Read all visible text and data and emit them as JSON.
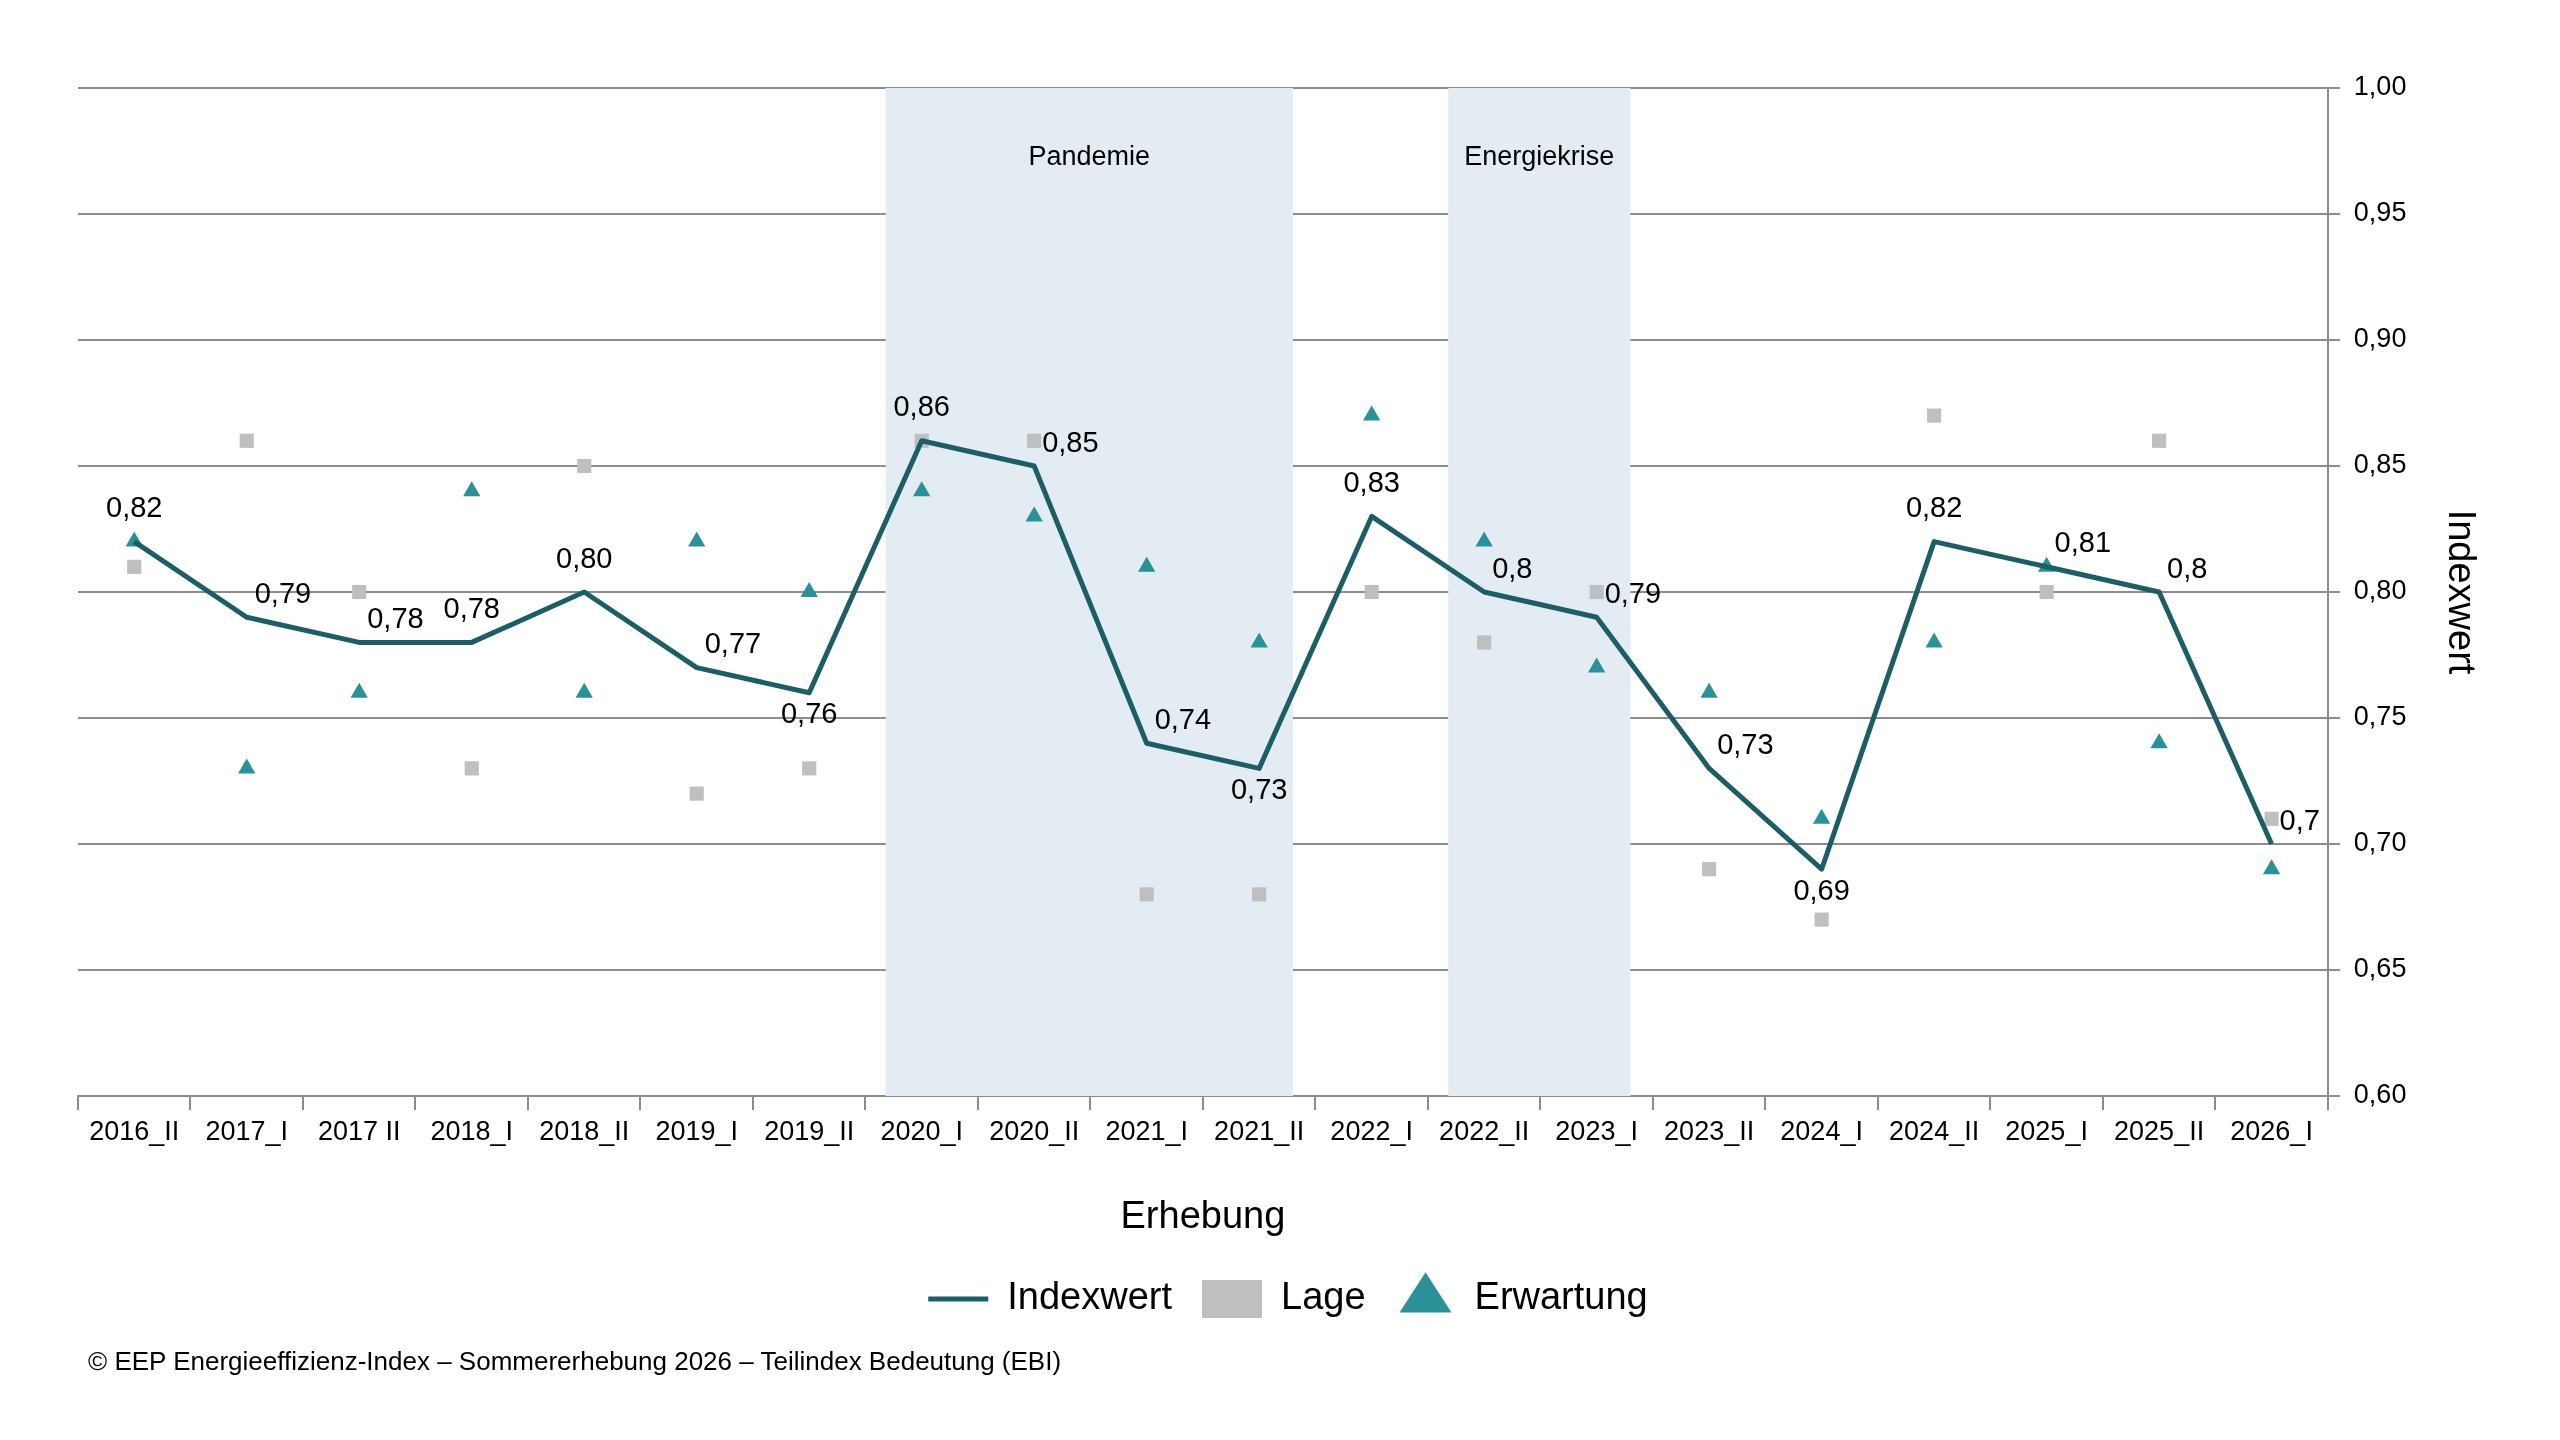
{
  "chart_data": {
    "type": "line",
    "xlabel": "Erhebung",
    "y2label": "Indexwert",
    "categories": [
      "2016_II",
      "2017_I",
      "2017 II",
      "2018_I",
      "2018_II",
      "2019_I",
      "2019_II",
      "2020_I",
      "2020_II",
      "2021_I",
      "2021_II",
      "2022_I",
      "2022_II",
      "2023_I",
      "2023_II",
      "2024_I",
      "2024_II",
      "2025_I",
      "2025_II",
      "2026_I"
    ],
    "series": [
      {
        "name": "Indexwert",
        "type": "line",
        "color": "#1d5e66",
        "marker": "none",
        "axis": "y2",
        "values": [
          0.82,
          0.79,
          0.78,
          0.78,
          0.8,
          0.77,
          0.76,
          0.86,
          0.85,
          0.74,
          0.73,
          0.83,
          0.8,
          0.79,
          0.73,
          0.69,
          0.82,
          0.81,
          0.8,
          0.7
        ],
        "value_labels": [
          "0,82",
          "0,79",
          "0,78",
          "0,78",
          "0,80",
          "0,77",
          "0,76",
          "0,86",
          "0,85",
          "0,74",
          "0,73",
          "0,83",
          "0,8",
          "0,79",
          "0,73",
          "0,69",
          "0,82",
          "0,81",
          "0,8",
          "0,7"
        ]
      },
      {
        "name": "Lage",
        "type": "scatter",
        "color": "#bfbfbf",
        "marker": "square",
        "axis": "y2",
        "values": [
          0.81,
          0.86,
          0.8,
          0.73,
          0.85,
          0.72,
          0.73,
          0.86,
          0.86,
          0.68,
          0.68,
          0.8,
          0.78,
          0.8,
          0.69,
          0.67,
          0.87,
          0.8,
          0.86,
          0.71
        ]
      },
      {
        "name": "Erwartung",
        "type": "scatter",
        "color": "#2a9199",
        "marker": "triangle",
        "axis": "y2",
        "values": [
          0.82,
          0.73,
          0.76,
          0.84,
          0.76,
          0.82,
          0.8,
          0.84,
          0.83,
          0.81,
          0.78,
          0.87,
          0.82,
          0.77,
          0.76,
          0.71,
          0.78,
          0.81,
          0.74,
          0.69
        ]
      }
    ],
    "y2lim": [
      0.6,
      1.0
    ],
    "y2ticks": [
      {
        "value": 0.6,
        "label": "0,60"
      },
      {
        "value": 0.65,
        "label": "0,65"
      },
      {
        "value": 0.7,
        "label": "0,70"
      },
      {
        "value": 0.75,
        "label": "0,75"
      },
      {
        "value": 0.8,
        "label": "0,80"
      },
      {
        "value": 0.85,
        "label": "0,85"
      },
      {
        "value": 0.9,
        "label": "0,90"
      },
      {
        "value": 0.95,
        "label": "0,95"
      },
      {
        "value": 1.0,
        "label": "1,00"
      }
    ],
    "bands": [
      {
        "axis": "x",
        "from": "2020_I",
        "to": "2021_II",
        "label": "Pandemie",
        "color": "#e3ecf3"
      },
      {
        "axis": "x",
        "from": "2022_II",
        "to": "2023_I",
        "label": "Energiekrise",
        "color": "#e3ecf3"
      }
    ],
    "grid": "y",
    "legend": "bottom",
    "annotations": [
      "© EEP Energieeffizienz-Index – Sommererhebung 2026 – Teilindex Bedeutung (EBI)"
    ]
  }
}
